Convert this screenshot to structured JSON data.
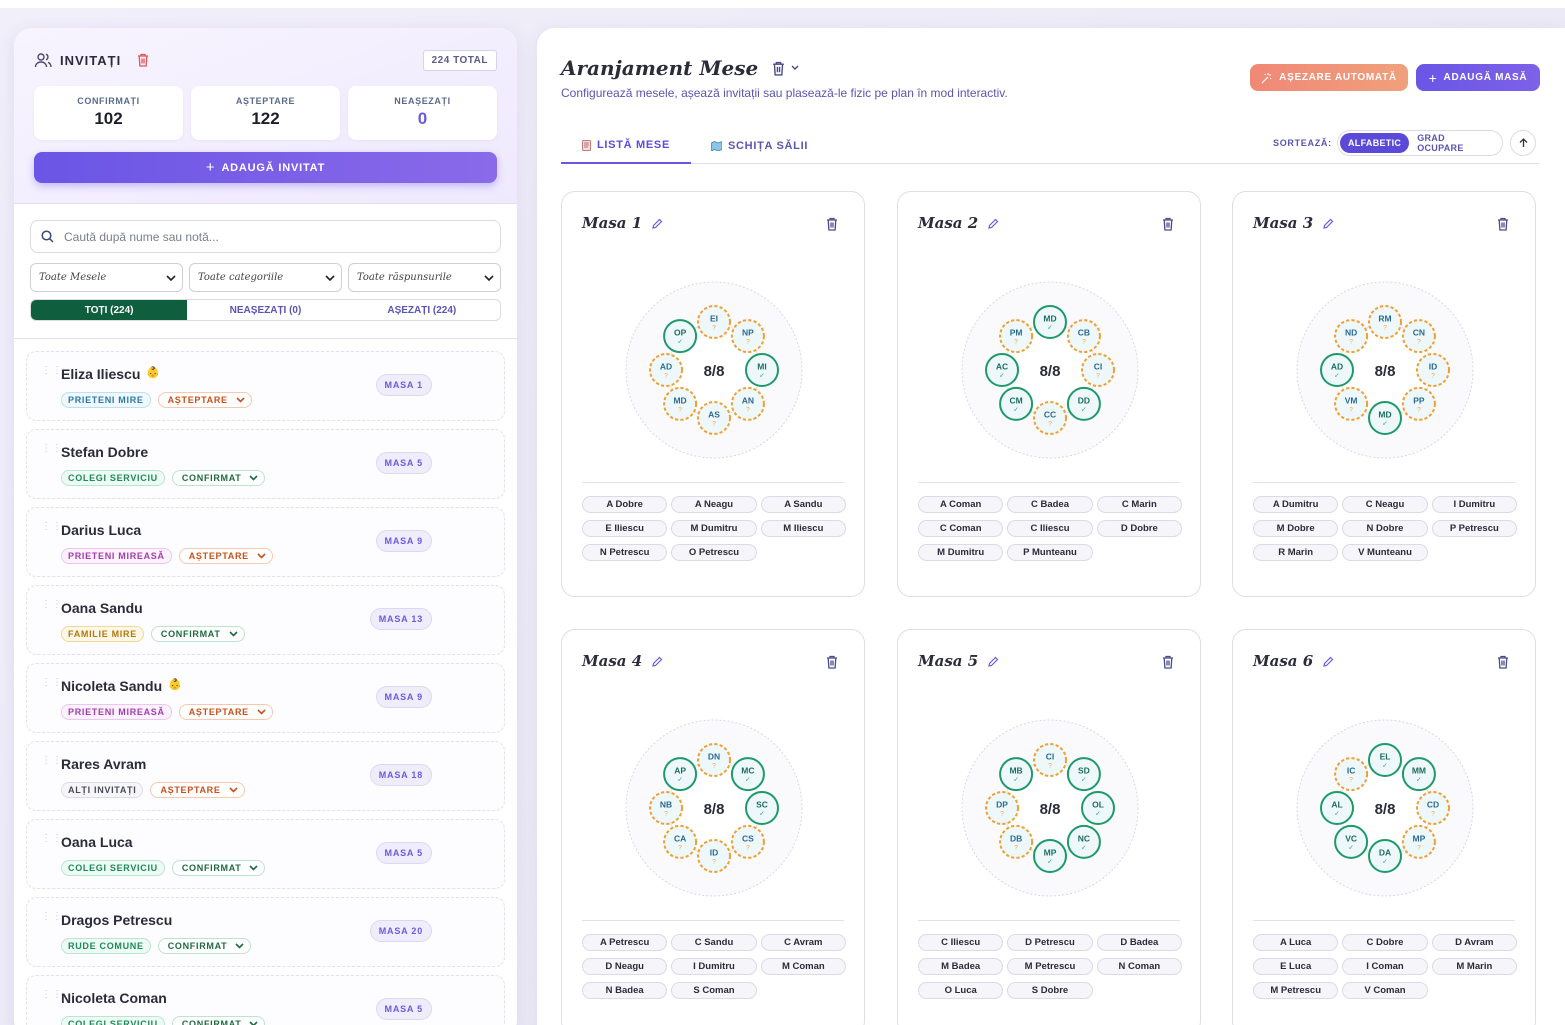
{
  "guests_panel": {
    "title": "INVITAȚI",
    "total_badge": "224 TOTAL",
    "stats": [
      {
        "label": "CONFIRMAȚI",
        "value": "102"
      },
      {
        "label": "AȘTEPTARE",
        "value": "122"
      },
      {
        "label": "NEAȘEZAȚI",
        "value": "0"
      }
    ],
    "add_button": "ADAUGĂ INVITAT",
    "search_placeholder": "Caută după nume sau notă...",
    "filters": [
      "Toate Mesele",
      "Toate categoriile",
      "Toate răspunsurile"
    ],
    "seat_tabs": [
      "TOȚI (224)",
      "NEAȘEZAȚI (0)",
      "AȘEZAȚI (224)"
    ],
    "guests": [
      {
        "name": "Eliza Iliescu",
        "child": true,
        "category": "PRIETENI MIRE",
        "cat_style": "blue",
        "response": "AȘTEPTARE",
        "table": "MASA 1"
      },
      {
        "name": "Stefan Dobre",
        "child": false,
        "category": "COLEGI SERVICIU",
        "cat_style": "green",
        "response": "CONFIRMAT",
        "table": "MASA 5"
      },
      {
        "name": "Darius Luca",
        "child": false,
        "category": "PRIETENI MIREASĂ",
        "cat_style": "pink",
        "response": "AȘTEPTARE",
        "table": "MASA 9"
      },
      {
        "name": "Oana Sandu",
        "child": false,
        "category": "FAMILIE MIRE",
        "cat_style": "yellow",
        "response": "CONFIRMAT",
        "table": "MASA 13"
      },
      {
        "name": "Nicoleta Sandu",
        "child": true,
        "category": "PRIETENI MIREASĂ",
        "cat_style": "pink",
        "response": "AȘTEPTARE",
        "table": "MASA 9"
      },
      {
        "name": "Rares Avram",
        "child": false,
        "category": "ALȚI INVITAȚI",
        "cat_style": "gray",
        "response": "AȘTEPTARE",
        "table": "MASA 18"
      },
      {
        "name": "Oana Luca",
        "child": false,
        "category": "COLEGI SERVICIU",
        "cat_style": "green",
        "response": "CONFIRMAT",
        "table": "MASA 5"
      },
      {
        "name": "Dragos Petrescu",
        "child": false,
        "category": "RUDE COMUNE",
        "cat_style": "green",
        "response": "CONFIRMAT",
        "table": "MASA 20"
      },
      {
        "name": "Nicoleta Coman",
        "child": false,
        "category": "COLEGI SERVICIU",
        "cat_style": "green",
        "response": "CONFIRMAT",
        "table": "MASA 5"
      }
    ]
  },
  "arrangement": {
    "title": "Aranjament Mese",
    "subtitle": "Configurează mesele, așează invitații sau plasează-le fizic pe plan în mod interactiv.",
    "auto_button": "AȘEZARE AUTOMATĂ",
    "add_table_button": "ADAUGĂ MASĂ",
    "tabs": [
      "LISTĂ MESE",
      "SCHIȚA SĂLII"
    ],
    "sort_label": "SORTEAZĂ:",
    "sort_options": [
      "ALFABETIC",
      "GRAD OCUPARE"
    ],
    "sort_active": "ALFABETIC",
    "colors": {
      "confirmed": "#1e9a6a",
      "pending": "#f0a030",
      "accent": "#6a55e6"
    }
  },
  "tables": [
    {
      "name": "Masa 1",
      "occupancy": "8/8",
      "seats": [
        {
          "i": "EI",
          "c": false
        },
        {
          "i": "NP",
          "c": false
        },
        {
          "i": "MI",
          "c": true
        },
        {
          "i": "AN",
          "c": false
        },
        {
          "i": "AS",
          "c": false
        },
        {
          "i": "MD",
          "c": false
        },
        {
          "i": "AD",
          "c": false
        },
        {
          "i": "OP",
          "c": true
        }
      ],
      "guests": [
        "A Dobre",
        "A Neagu",
        "A Sandu",
        "E Iliescu",
        "M Dumitru",
        "M Iliescu",
        "N Petrescu",
        "O Petrescu"
      ]
    },
    {
      "name": "Masa 2",
      "occupancy": "8/8",
      "seats": [
        {
          "i": "MD",
          "c": true
        },
        {
          "i": "CB",
          "c": false
        },
        {
          "i": "CI",
          "c": false
        },
        {
          "i": "DD",
          "c": true
        },
        {
          "i": "CC",
          "c": false
        },
        {
          "i": "CM",
          "c": true
        },
        {
          "i": "AC",
          "c": true
        },
        {
          "i": "PM",
          "c": false
        }
      ],
      "guests": [
        "A Coman",
        "C Badea",
        "C Marin",
        "C Coman",
        "C Iliescu",
        "D Dobre",
        "M Dumitru",
        "P Munteanu"
      ]
    },
    {
      "name": "Masa 3",
      "occupancy": "8/8",
      "seats": [
        {
          "i": "RM",
          "c": false
        },
        {
          "i": "CN",
          "c": false
        },
        {
          "i": "ID",
          "c": false
        },
        {
          "i": "PP",
          "c": false
        },
        {
          "i": "MD",
          "c": true
        },
        {
          "i": "VM",
          "c": false
        },
        {
          "i": "AD",
          "c": true
        },
        {
          "i": "ND",
          "c": false
        }
      ],
      "guests": [
        "A Dumitru",
        "C Neagu",
        "I Dumitru",
        "M Dobre",
        "N Dobre",
        "P Petrescu",
        "R Marin",
        "V Munteanu"
      ]
    },
    {
      "name": "Masa 4",
      "occupancy": "8/8",
      "seats": [
        {
          "i": "DN",
          "c": false
        },
        {
          "i": "MC",
          "c": true
        },
        {
          "i": "SC",
          "c": true
        },
        {
          "i": "CS",
          "c": false
        },
        {
          "i": "ID",
          "c": false
        },
        {
          "i": "CA",
          "c": false
        },
        {
          "i": "NB",
          "c": false
        },
        {
          "i": "AP",
          "c": true
        }
      ],
      "guests": [
        "A Petrescu",
        "C Sandu",
        "C Avram",
        "D Neagu",
        "I Dumitru",
        "M Coman",
        "N Badea",
        "S Coman"
      ]
    },
    {
      "name": "Masa 5",
      "occupancy": "8/8",
      "seats": [
        {
          "i": "CI",
          "c": false
        },
        {
          "i": "SD",
          "c": true
        },
        {
          "i": "OL",
          "c": true
        },
        {
          "i": "NC",
          "c": true
        },
        {
          "i": "MP",
          "c": true
        },
        {
          "i": "DB",
          "c": false
        },
        {
          "i": "DP",
          "c": false
        },
        {
          "i": "MB",
          "c": true
        }
      ],
      "guests": [
        "C Iliescu",
        "D Petrescu",
        "D Badea",
        "M Badea",
        "M Petrescu",
        "N Coman",
        "O Luca",
        "S Dobre"
      ]
    },
    {
      "name": "Masa 6",
      "occupancy": "8/8",
      "seats": [
        {
          "i": "EL",
          "c": true
        },
        {
          "i": "MM",
          "c": true
        },
        {
          "i": "CD",
          "c": false
        },
        {
          "i": "MP",
          "c": false
        },
        {
          "i": "DA",
          "c": true
        },
        {
          "i": "VC",
          "c": true
        },
        {
          "i": "AL",
          "c": true
        },
        {
          "i": "IC",
          "c": false
        }
      ],
      "guests": [
        "A Luca",
        "C Dobre",
        "D Avram",
        "E Luca",
        "I Coman",
        "M Marin",
        "M Petrescu",
        "V Coman"
      ]
    }
  ]
}
